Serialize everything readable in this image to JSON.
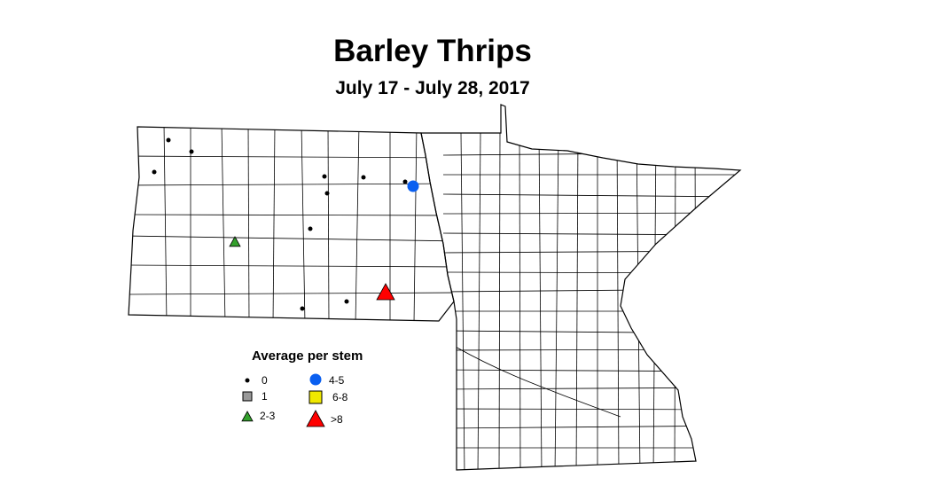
{
  "title": "Barley Thrips",
  "subtitle": "July 17 - July 28, 2017",
  "legend": {
    "title": "Average per stem",
    "items": [
      {
        "label": "0",
        "symbol": "small-dot",
        "color": "#000000"
      },
      {
        "label": "1",
        "symbol": "square",
        "color": "#999999"
      },
      {
        "label": "2-3",
        "symbol": "triangle",
        "color": "#33a02c"
      },
      {
        "label": "4-5",
        "symbol": "circle",
        "color": "#0a5ff0"
      },
      {
        "label": "6-8",
        "symbol": "square",
        "color": "#f0e800"
      },
      {
        "label": ">8",
        "symbol": "triangle",
        "color": "#ff0000"
      }
    ]
  },
  "sites": [
    "0",
    "0",
    "0",
    "0",
    "0",
    "0",
    "0",
    "0",
    "0",
    "0",
    "4-5",
    "2-3",
    ">8"
  ]
}
